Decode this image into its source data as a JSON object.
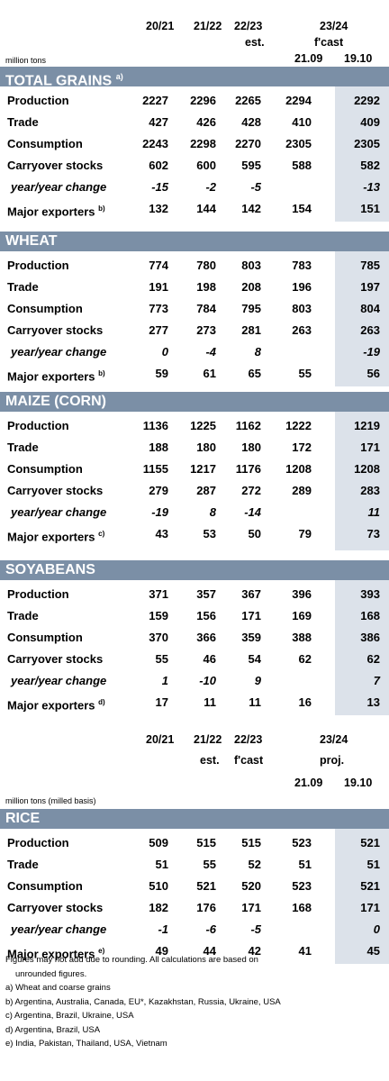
{
  "header1": {
    "c1": "20/21",
    "c2": "21/22",
    "c3": "22/23",
    "c3b": "est.",
    "c45": "23/24",
    "c45b": "f'cast",
    "c4": "21.09",
    "c5": "19.10",
    "unit": "million tons"
  },
  "header2": {
    "c1": "20/21",
    "c2": "21/22",
    "c2b": "est.",
    "c3": "22/23",
    "c3b": "f'cast",
    "c45": "23/24",
    "c45b": "proj.",
    "c4": "21.09",
    "c5": "19.10",
    "unit": "million tons (milled basis)"
  },
  "sections": [
    {
      "title": "TOTAL GRAINS",
      "sup": "a)",
      "rows": [
        {
          "label": "Production",
          "sup": "",
          "italic": false,
          "v": [
            "2227",
            "2296",
            "2265",
            "2294",
            "2292"
          ]
        },
        {
          "label": "Trade",
          "sup": "",
          "italic": false,
          "v": [
            "427",
            "426",
            "428",
            "410",
            "409"
          ]
        },
        {
          "label": "Consumption",
          "sup": "",
          "italic": false,
          "v": [
            "2243",
            "2298",
            "2270",
            "2305",
            "2305"
          ]
        },
        {
          "label": "Carryover stocks",
          "sup": "",
          "italic": false,
          "v": [
            "602",
            "600",
            "595",
            "588",
            "582"
          ]
        },
        {
          "label": "year/year change",
          "sup": "",
          "italic": true,
          "v": [
            "-15",
            "-2",
            "-5",
            "",
            "-13"
          ]
        },
        {
          "label": "Major exporters",
          "sup": "b)",
          "italic": false,
          "v": [
            "132",
            "144",
            "142",
            "154",
            "151"
          ]
        }
      ]
    },
    {
      "title": "WHEAT",
      "sup": "",
      "rows": [
        {
          "label": "Production",
          "sup": "",
          "italic": false,
          "v": [
            "774",
            "780",
            "803",
            "783",
            "785"
          ]
        },
        {
          "label": "Trade",
          "sup": "",
          "italic": false,
          "v": [
            "191",
            "198",
            "208",
            "196",
            "197"
          ]
        },
        {
          "label": "Consumption",
          "sup": "",
          "italic": false,
          "v": [
            "773",
            "784",
            "795",
            "803",
            "804"
          ]
        },
        {
          "label": "Carryover stocks",
          "sup": "",
          "italic": false,
          "v": [
            "277",
            "273",
            "281",
            "263",
            "263"
          ]
        },
        {
          "label": "year/year change",
          "sup": "",
          "italic": true,
          "v": [
            "0",
            "-4",
            "8",
            "",
            "-19"
          ]
        },
        {
          "label": "Major exporters",
          "sup": "b)",
          "italic": false,
          "v": [
            "59",
            "61",
            "65",
            "55",
            "56"
          ]
        }
      ]
    },
    {
      "title": "MAIZE (CORN)",
      "sup": "",
      "rows": [
        {
          "label": "Production",
          "sup": "",
          "italic": false,
          "v": [
            "1136",
            "1225",
            "1162",
            "1222",
            "1219"
          ]
        },
        {
          "label": "Trade",
          "sup": "",
          "italic": false,
          "v": [
            "188",
            "180",
            "180",
            "172",
            "171"
          ]
        },
        {
          "label": "Consumption",
          "sup": "",
          "italic": false,
          "v": [
            "1155",
            "1217",
            "1176",
            "1208",
            "1208"
          ]
        },
        {
          "label": "Carryover stocks",
          "sup": "",
          "italic": false,
          "v": [
            "279",
            "287",
            "272",
            "289",
            "283"
          ]
        },
        {
          "label": "year/year change",
          "sup": "",
          "italic": true,
          "v": [
            "-19",
            "8",
            "-14",
            "",
            "11"
          ]
        },
        {
          "label": "Major exporters",
          "sup": "c)",
          "italic": false,
          "v": [
            "43",
            "53",
            "50",
            "79",
            "73"
          ]
        }
      ]
    },
    {
      "title": "SOYABEANS",
      "sup": "",
      "rows": [
        {
          "label": "Production",
          "sup": "",
          "italic": false,
          "v": [
            "371",
            "357",
            "367",
            "396",
            "393"
          ]
        },
        {
          "label": "Trade",
          "sup": "",
          "italic": false,
          "v": [
            "159",
            "156",
            "171",
            "169",
            "168"
          ]
        },
        {
          "label": "Consumption",
          "sup": "",
          "italic": false,
          "v": [
            "370",
            "366",
            "359",
            "388",
            "386"
          ]
        },
        {
          "label": "Carryover stocks",
          "sup": "",
          "italic": false,
          "v": [
            "55",
            "46",
            "54",
            "62",
            "62"
          ]
        },
        {
          "label": "year/year change",
          "sup": "",
          "italic": true,
          "v": [
            "1",
            "-10",
            "9",
            "",
            "7"
          ]
        },
        {
          "label": "Major exporters",
          "sup": "d)",
          "italic": false,
          "v": [
            "17",
            "11",
            "11",
            "16",
            "13"
          ]
        }
      ]
    },
    {
      "title": "RICE",
      "sup": "",
      "rows": [
        {
          "label": "Production",
          "sup": "",
          "italic": false,
          "v": [
            "509",
            "515",
            "515",
            "523",
            "521"
          ]
        },
        {
          "label": "Trade",
          "sup": "",
          "italic": false,
          "v": [
            "51",
            "55",
            "52",
            "51",
            "51"
          ]
        },
        {
          "label": "Consumption",
          "sup": "",
          "italic": false,
          "v": [
            "510",
            "521",
            "520",
            "523",
            "521"
          ]
        },
        {
          "label": "Carryover stocks",
          "sup": "",
          "italic": false,
          "v": [
            "182",
            "176",
            "171",
            "168",
            "171"
          ]
        },
        {
          "label": "year/year change",
          "sup": "",
          "italic": true,
          "v": [
            "-1",
            "-6",
            "-5",
            "",
            "0"
          ]
        },
        {
          "label": "Major exporters",
          "sup": "e)",
          "italic": false,
          "v": [
            "49",
            "44",
            "42",
            "41",
            "45"
          ]
        }
      ]
    }
  ],
  "notes": [
    "Figures may not add due to rounding. All calculations are based on",
    "unrounded figures.",
    "a) Wheat and coarse grains",
    "b) Argentina, Australia, Canada, EU*, Kazakhstan, Russia, Ukraine, USA",
    "c) Argentina, Brazil, Ukraine, USA",
    "d) Argentina, Brazil, USA",
    "e) India, Pakistan, Thailand, USA, Vietnam"
  ]
}
